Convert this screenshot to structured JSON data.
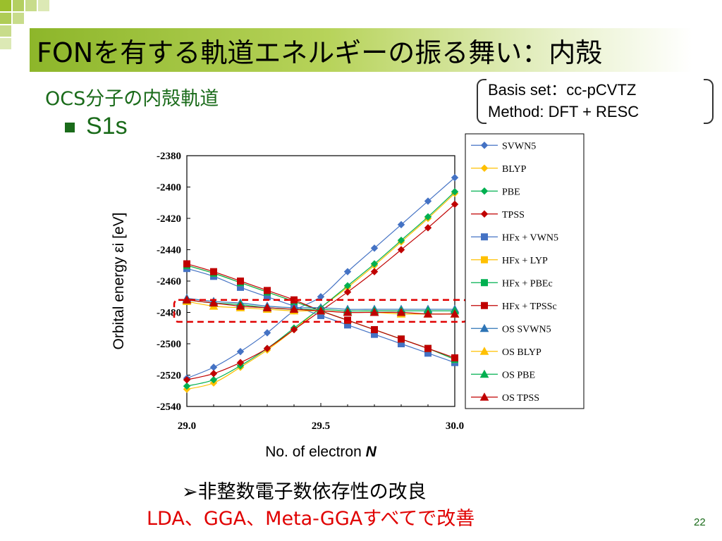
{
  "slide": {
    "title": "FONを有する軌道エネルギーの振る舞い：内殻",
    "subtitle": "OCS分子の内殻軌道",
    "bullet": "S1s",
    "basis_line": "Basis set：cc-pCVTZ",
    "method_line": "Method: DFT + RESC",
    "conclusion_1": "➢非整数電子数依存性の改良",
    "conclusion_2": "LDA、GGA、Meta-GGAすべてで改善",
    "page_number": "22",
    "colors": {
      "title_green": "#8db62a",
      "subtitle_green": "#1a6b1a",
      "highlight_red": "#e00000"
    }
  },
  "chart_data": {
    "type": "line",
    "xlabel": "No. of electron N",
    "ylabel": "Orbital energy εi [eV]",
    "xlim": [
      29.0,
      30.0
    ],
    "ylim": [
      -2540,
      -2380
    ],
    "x_ticks": [
      "29.0",
      "29.5",
      "30.0"
    ],
    "y_ticks": [
      "-2380",
      "-2400",
      "-2420",
      "-2440",
      "-2460",
      "-2480",
      "-2500",
      "-2520",
      "-2540"
    ],
    "legend_position": "right",
    "highlight_box": {
      "x": [
        29.0,
        30.0
      ],
      "y": [
        -2472,
        -2486
      ],
      "color": "#e00000",
      "style": "dashed"
    },
    "x": [
      29.0,
      29.1,
      29.2,
      29.3,
      29.4,
      29.5,
      29.6,
      29.7,
      29.8,
      29.9,
      30.0
    ],
    "series": [
      {
        "name": "SVWN5",
        "marker": "diamond",
        "color": "#4472c4",
        "values": [
          -2522,
          -2515,
          -2505,
          -2493,
          -2479,
          -2470,
          -2454,
          -2439,
          -2424,
          -2409,
          -2394
        ]
      },
      {
        "name": "BLYP",
        "marker": "diamond",
        "color": "#ffc000",
        "values": [
          -2529,
          -2525,
          -2515,
          -2504,
          -2491,
          -2477,
          -2464,
          -2450,
          -2435,
          -2420,
          -2404
        ]
      },
      {
        "name": "PBE",
        "marker": "diamond",
        "color": "#00b050",
        "values": [
          -2527,
          -2523,
          -2514,
          -2503,
          -2490,
          -2477,
          -2463,
          -2449,
          -2434,
          -2419,
          -2403
        ]
      },
      {
        "name": "TPSS",
        "marker": "diamond",
        "color": "#c00000",
        "values": [
          -2523,
          -2519,
          -2512,
          -2503,
          -2491,
          -2479,
          -2467,
          -2454,
          -2440,
          -2426,
          -2411
        ]
      },
      {
        "name": "HFx + VWN5",
        "marker": "square",
        "color": "#4472c4",
        "values": [
          -2452,
          -2457,
          -2464,
          -2470,
          -2476,
          -2482,
          -2488,
          -2494,
          -2500,
          -2506,
          -2512
        ]
      },
      {
        "name": "HFx + LYP",
        "marker": "square",
        "color": "#ffc000",
        "values": [
          -2450,
          -2455,
          -2461,
          -2467,
          -2473,
          -2479,
          -2485,
          -2491,
          -2497,
          -2503,
          -2510
        ]
      },
      {
        "name": "HFx + PBEc",
        "marker": "square",
        "color": "#00b050",
        "values": [
          -2450,
          -2455,
          -2461,
          -2467,
          -2473,
          -2479,
          -2485,
          -2491,
          -2497,
          -2503,
          -2510
        ]
      },
      {
        "name": "HFx + TPSSc",
        "marker": "square",
        "color": "#c00000",
        "values": [
          -2449,
          -2454,
          -2460,
          -2466,
          -2472,
          -2479,
          -2485,
          -2491,
          -2497,
          -2503,
          -2509
        ]
      },
      {
        "name": "OS SVWN5",
        "marker": "triangle",
        "color": "#2e75b6",
        "values": [
          -2471,
          -2473,
          -2474,
          -2476,
          -2477,
          -2477,
          -2478,
          -2478,
          -2478,
          -2478,
          -2478
        ]
      },
      {
        "name": "OS BLYP",
        "marker": "triangle",
        "color": "#ffc000",
        "values": [
          -2473,
          -2476,
          -2477,
          -2478,
          -2479,
          -2479,
          -2480,
          -2480,
          -2481,
          -2481,
          -2481
        ]
      },
      {
        "name": "OS PBE",
        "marker": "triangle",
        "color": "#00b050",
        "values": [
          -2472,
          -2474,
          -2475,
          -2477,
          -2478,
          -2478,
          -2479,
          -2479,
          -2479,
          -2479,
          -2479
        ]
      },
      {
        "name": "OS TPSS",
        "marker": "triangle",
        "color": "#c00000",
        "values": [
          -2472,
          -2474,
          -2476,
          -2477,
          -2478,
          -2479,
          -2480,
          -2480,
          -2480,
          -2481,
          -2481
        ]
      }
    ]
  }
}
